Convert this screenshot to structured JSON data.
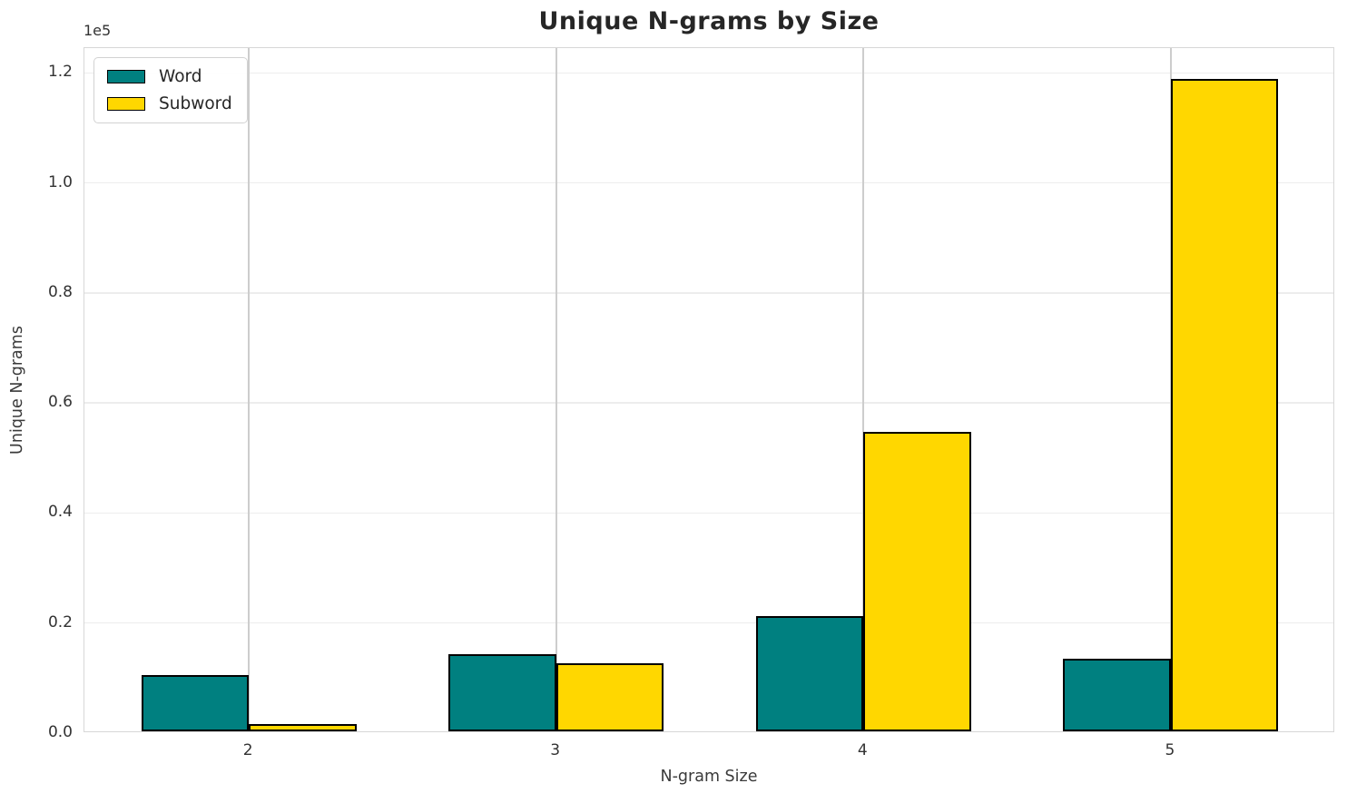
{
  "chart": {
    "title": "Unique N-grams by Size",
    "xlabel": "N-gram Size",
    "ylabel": "Unique N-grams",
    "scale_offset_label": "1e5"
  },
  "chart_data": {
    "type": "bar",
    "title": "Unique N-grams by Size",
    "xlabel": "N-gram Size",
    "ylabel": "Unique N-grams",
    "categories": [
      "2",
      "3",
      "4",
      "5"
    ],
    "series": [
      {
        "name": "Word",
        "color": "#008080",
        "values": [
          10200,
          14000,
          21000,
          13200
        ]
      },
      {
        "name": "Subword",
        "color": "#FFD700",
        "values": [
          1400,
          12400,
          54500,
          118500
        ]
      }
    ],
    "bar_edge_color": "#000000",
    "ylim": [
      0,
      124500
    ],
    "y_tick_step": 20000,
    "y_ticks": [
      "0.0",
      "0.2",
      "0.4",
      "0.6",
      "0.8",
      "1.0",
      "1.2"
    ],
    "x_ticks": [
      "2",
      "3",
      "4",
      "5"
    ],
    "scale_offset": "1e5",
    "grid": true,
    "grid_h_color": "#ededed",
    "grid_v_color": "#cdcdcd",
    "legend_position": "upper left",
    "bar_width": 0.35
  }
}
